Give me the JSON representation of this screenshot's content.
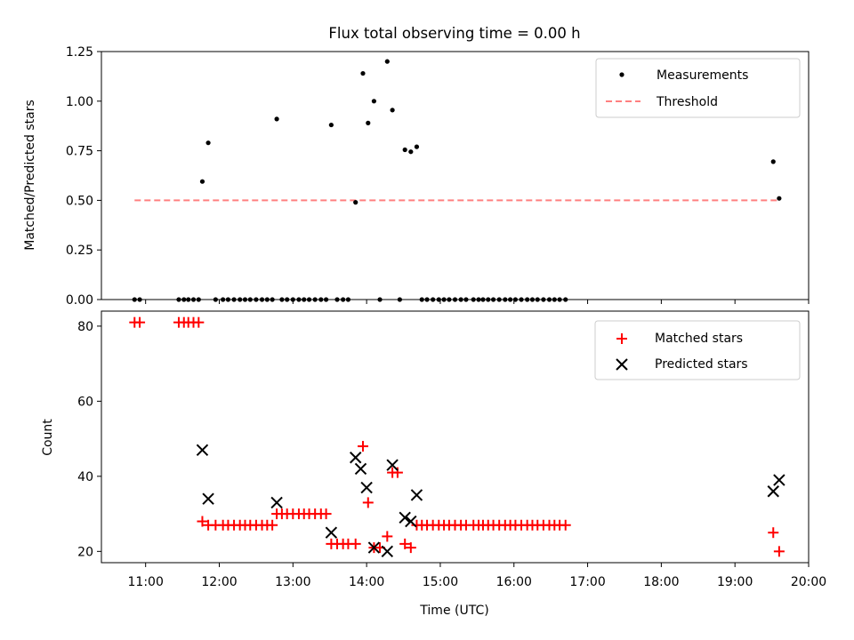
{
  "chart_data": [
    {
      "type": "scatter",
      "title": "Flux total observing time = 0.00 h",
      "xlabel": "",
      "ylabel": "Matched/Predicted stars",
      "xlim": [
        10.4,
        20.0
      ],
      "ylim": [
        0,
        1.25
      ],
      "yticks": [
        "0.00",
        "0.25",
        "0.50",
        "0.75",
        "1.00",
        "1.25"
      ],
      "legend": {
        "position": "top-right",
        "entries": [
          "Measurements",
          "Threshold"
        ]
      },
      "series": [
        {
          "name": "Measurements",
          "marker": "dot",
          "color": "#000000",
          "points": [
            [
              10.85,
              0
            ],
            [
              10.92,
              0
            ],
            [
              11.45,
              0
            ],
            [
              11.52,
              0
            ],
            [
              11.58,
              0
            ],
            [
              11.65,
              0
            ],
            [
              11.72,
              0
            ],
            [
              11.77,
              0.595
            ],
            [
              11.85,
              0.79
            ],
            [
              11.95,
              0
            ],
            [
              12.05,
              0
            ],
            [
              12.12,
              0
            ],
            [
              12.2,
              0
            ],
            [
              12.28,
              0
            ],
            [
              12.35,
              0
            ],
            [
              12.42,
              0
            ],
            [
              12.5,
              0
            ],
            [
              12.58,
              0
            ],
            [
              12.65,
              0
            ],
            [
              12.72,
              0
            ],
            [
              12.78,
              0.91
            ],
            [
              12.85,
              0
            ],
            [
              12.92,
              0
            ],
            [
              13.0,
              0
            ],
            [
              13.08,
              0
            ],
            [
              13.15,
              0
            ],
            [
              13.22,
              0
            ],
            [
              13.3,
              0
            ],
            [
              13.38,
              0
            ],
            [
              13.45,
              0
            ],
            [
              13.52,
              0.88
            ],
            [
              13.6,
              0
            ],
            [
              13.68,
              0
            ],
            [
              13.75,
              0
            ],
            [
              13.85,
              0.49
            ],
            [
              13.95,
              1.14
            ],
            [
              14.02,
              0.89
            ],
            [
              14.1,
              1.0
            ],
            [
              14.18,
              0
            ],
            [
              14.28,
              1.2
            ],
            [
              14.35,
              0.955
            ],
            [
              14.45,
              0
            ],
            [
              14.52,
              0.755
            ],
            [
              14.6,
              0.745
            ],
            [
              14.68,
              0.77
            ],
            [
              14.75,
              0
            ],
            [
              14.82,
              0
            ],
            [
              14.9,
              0
            ],
            [
              14.98,
              0
            ],
            [
              15.05,
              0
            ],
            [
              15.12,
              0
            ],
            [
              15.2,
              0
            ],
            [
              15.28,
              0
            ],
            [
              15.35,
              0
            ],
            [
              15.45,
              0
            ],
            [
              15.52,
              0
            ],
            [
              15.58,
              0
            ],
            [
              15.65,
              0
            ],
            [
              15.72,
              0
            ],
            [
              15.8,
              0
            ],
            [
              15.88,
              0
            ],
            [
              15.95,
              0
            ],
            [
              16.02,
              0
            ],
            [
              16.1,
              0
            ],
            [
              16.18,
              0
            ],
            [
              16.25,
              0
            ],
            [
              16.32,
              0
            ],
            [
              16.4,
              0
            ],
            [
              16.48,
              0
            ],
            [
              16.55,
              0
            ],
            [
              16.62,
              0
            ],
            [
              16.7,
              0
            ],
            [
              19.52,
              0.695
            ],
            [
              19.6,
              0.51
            ]
          ]
        },
        {
          "name": "Threshold",
          "style": "dashed",
          "color": "#ff8080",
          "x": [
            10.85,
            19.6
          ],
          "y": [
            0.5,
            0.5
          ]
        }
      ]
    },
    {
      "type": "scatter",
      "xlabel": "Time (UTC)",
      "ylabel": "Count",
      "xlim": [
        10.4,
        20.0
      ],
      "ylim": [
        17,
        84
      ],
      "xticks": [
        "11:00",
        "12:00",
        "13:00",
        "14:00",
        "15:00",
        "16:00",
        "17:00",
        "18:00",
        "19:00",
        "20:00"
      ],
      "yticks": [
        "20",
        "40",
        "60",
        "80"
      ],
      "legend": {
        "position": "top-right",
        "entries": [
          "Matched stars",
          "Predicted stars"
        ]
      },
      "series": [
        {
          "name": "Matched stars",
          "marker": "plus",
          "color": "#ff0000",
          "points": [
            [
              10.85,
              81
            ],
            [
              10.92,
              81
            ],
            [
              11.45,
              81
            ],
            [
              11.52,
              81
            ],
            [
              11.58,
              81
            ],
            [
              11.65,
              81
            ],
            [
              11.72,
              81
            ],
            [
              11.77,
              28
            ],
            [
              11.85,
              27
            ],
            [
              11.95,
              27
            ],
            [
              12.05,
              27
            ],
            [
              12.12,
              27
            ],
            [
              12.2,
              27
            ],
            [
              12.28,
              27
            ],
            [
              12.35,
              27
            ],
            [
              12.42,
              27
            ],
            [
              12.5,
              27
            ],
            [
              12.58,
              27
            ],
            [
              12.65,
              27
            ],
            [
              12.72,
              27
            ],
            [
              12.78,
              30
            ],
            [
              12.85,
              30
            ],
            [
              12.92,
              30
            ],
            [
              13.0,
              30
            ],
            [
              13.08,
              30
            ],
            [
              13.15,
              30
            ],
            [
              13.22,
              30
            ],
            [
              13.3,
              30
            ],
            [
              13.38,
              30
            ],
            [
              13.45,
              30
            ],
            [
              13.52,
              22
            ],
            [
              13.6,
              22
            ],
            [
              13.68,
              22
            ],
            [
              13.75,
              22
            ],
            [
              13.85,
              22
            ],
            [
              13.95,
              48
            ],
            [
              14.02,
              33
            ],
            [
              14.1,
              21
            ],
            [
              14.18,
              21
            ],
            [
              14.28,
              24
            ],
            [
              14.35,
              41
            ],
            [
              14.42,
              41
            ],
            [
              14.52,
              22
            ],
            [
              14.6,
              21
            ],
            [
              14.68,
              27
            ],
            [
              14.75,
              27
            ],
            [
              14.82,
              27
            ],
            [
              14.9,
              27
            ],
            [
              14.98,
              27
            ],
            [
              15.05,
              27
            ],
            [
              15.12,
              27
            ],
            [
              15.2,
              27
            ],
            [
              15.28,
              27
            ],
            [
              15.35,
              27
            ],
            [
              15.45,
              27
            ],
            [
              15.52,
              27
            ],
            [
              15.58,
              27
            ],
            [
              15.65,
              27
            ],
            [
              15.72,
              27
            ],
            [
              15.8,
              27
            ],
            [
              15.88,
              27
            ],
            [
              15.95,
              27
            ],
            [
              16.02,
              27
            ],
            [
              16.1,
              27
            ],
            [
              16.18,
              27
            ],
            [
              16.25,
              27
            ],
            [
              16.32,
              27
            ],
            [
              16.4,
              27
            ],
            [
              16.48,
              27
            ],
            [
              16.55,
              27
            ],
            [
              16.62,
              27
            ],
            [
              16.7,
              27
            ],
            [
              19.52,
              25
            ],
            [
              19.6,
              20
            ]
          ]
        },
        {
          "name": "Predicted stars",
          "marker": "x",
          "color": "#000000",
          "points": [
            [
              11.77,
              47
            ],
            [
              11.85,
              34
            ],
            [
              12.78,
              33
            ],
            [
              13.52,
              25
            ],
            [
              13.85,
              45
            ],
            [
              13.92,
              42
            ],
            [
              14.0,
              37
            ],
            [
              14.1,
              21
            ],
            [
              14.28,
              20
            ],
            [
              14.35,
              43
            ],
            [
              14.52,
              29
            ],
            [
              14.6,
              28
            ],
            [
              14.68,
              35
            ],
            [
              19.52,
              36
            ],
            [
              19.6,
              39
            ]
          ]
        }
      ]
    }
  ]
}
